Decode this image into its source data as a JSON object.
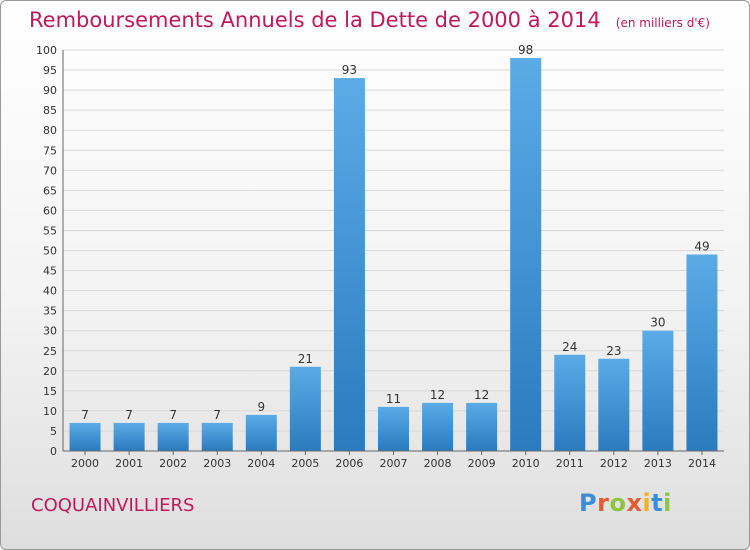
{
  "title": "Remboursements Annuels de la Dette de 2000 à 2014",
  "unit": "(en milliers d'€)",
  "place": "COQUAINVILLIERS",
  "brand": "Proxiti",
  "colors": {
    "title": "#c2185b",
    "bar_top": "#5aabe6",
    "bar_bottom": "#2a7bbf",
    "grid": "#d9d9d9"
  },
  "chart_data": {
    "type": "bar",
    "categories": [
      "2000",
      "2001",
      "2002",
      "2003",
      "2004",
      "2005",
      "2006",
      "2007",
      "2008",
      "2009",
      "2010",
      "2011",
      "2012",
      "2013",
      "2014"
    ],
    "values": [
      7,
      7,
      7,
      7,
      9,
      21,
      93,
      11,
      12,
      12,
      98,
      24,
      23,
      30,
      49
    ],
    "ylim": [
      0,
      100
    ],
    "yticks": [
      0,
      5,
      10,
      15,
      20,
      25,
      30,
      35,
      40,
      45,
      50,
      55,
      60,
      65,
      70,
      75,
      80,
      85,
      90,
      95,
      100
    ],
    "grid": true,
    "data_labels": true
  }
}
